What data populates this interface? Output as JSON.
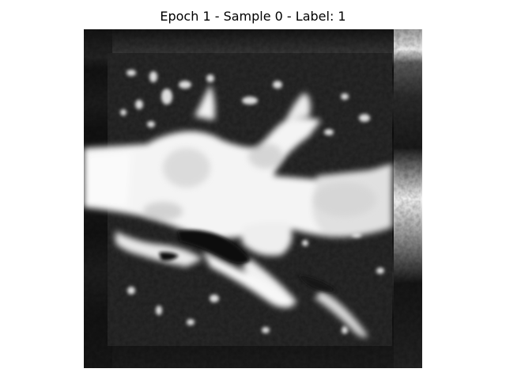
{
  "figure": {
    "title": "Epoch 1 - Sample 0 - Label: 1"
  },
  "image": {
    "kind": "grayscale CT slice",
    "colormap": "gray",
    "axes_visible": false
  },
  "colors": {
    "background": "#ffffff",
    "title_text": "#000000"
  }
}
